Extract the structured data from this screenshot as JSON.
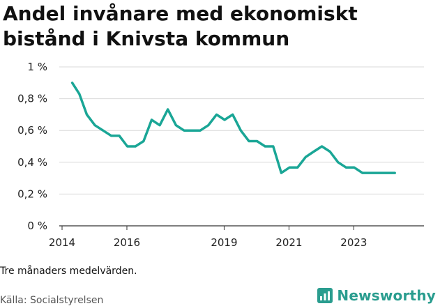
{
  "title_line1": "Andel invånare med ekonomiskt",
  "title_line2": "bistånd i Knivsta kommun",
  "note": "Tre månaders medelvärden.",
  "source": "Källa: Socialstyrelsen",
  "brand": {
    "name": "Newsworthy",
    "icon": "bar-chart-icon",
    "color": "#2a9d8f"
  },
  "colors": {
    "line": "#1aa696",
    "grid": "#d9d9d9",
    "axis": "#333333"
  },
  "chart_data": {
    "type": "line",
    "title": "Andel invånare med ekonomiskt bistånd i Knivsta kommun",
    "xlabel": "",
    "ylabel": "",
    "ylim": [
      0,
      1
    ],
    "xlim": [
      2014.0,
      2025.25
    ],
    "y_ticks": [
      {
        "value": 0,
        "label": "0 %"
      },
      {
        "value": 0.2,
        "label": "0,2 %"
      },
      {
        "value": 0.4,
        "label": "0,4 %"
      },
      {
        "value": 0.6,
        "label": "0,6 %"
      },
      {
        "value": 0.8,
        "label": "0,8 %"
      },
      {
        "value": 1,
        "label": "1 %"
      }
    ],
    "x_ticks": [
      {
        "value": 2014,
        "label": "2014"
      },
      {
        "value": 2016,
        "label": "2016"
      },
      {
        "value": 2019,
        "label": "2019"
      },
      {
        "value": 2021,
        "label": "2021"
      },
      {
        "value": 2023,
        "label": "2023"
      }
    ],
    "grid": true,
    "series": [
      {
        "x": [
          2014.4,
          2014.62,
          2014.85,
          2015.1,
          2015.35,
          2015.6,
          2015.85,
          2016.1,
          2016.35,
          2016.6,
          2016.85,
          2017.1,
          2017.35,
          2017.6,
          2017.85,
          2018.1,
          2018.35,
          2018.6,
          2018.85,
          2019.1,
          2019.35,
          2019.6,
          2019.85,
          2020.1,
          2020.35,
          2020.6,
          2020.85,
          2021.1,
          2021.35,
          2021.6,
          2021.85,
          2022.1,
          2022.35,
          2022.6,
          2022.85,
          2023.1,
          2023.35,
          2023.6,
          2023.85,
          2024.1,
          2024.35
        ],
        "values": [
          0.9,
          0.83,
          0.7,
          0.633,
          0.6,
          0.567,
          0.567,
          0.5,
          0.5,
          0.533,
          0.667,
          0.633,
          0.733,
          0.633,
          0.6,
          0.6,
          0.6,
          0.633,
          0.7,
          0.667,
          0.7,
          0.6,
          0.533,
          0.533,
          0.5,
          0.5,
          0.333,
          0.367,
          0.367,
          0.433,
          0.467,
          0.5,
          0.467,
          0.4,
          0.367,
          0.367,
          0.333,
          0.333,
          0.333,
          0.333,
          0.333
        ]
      }
    ]
  }
}
